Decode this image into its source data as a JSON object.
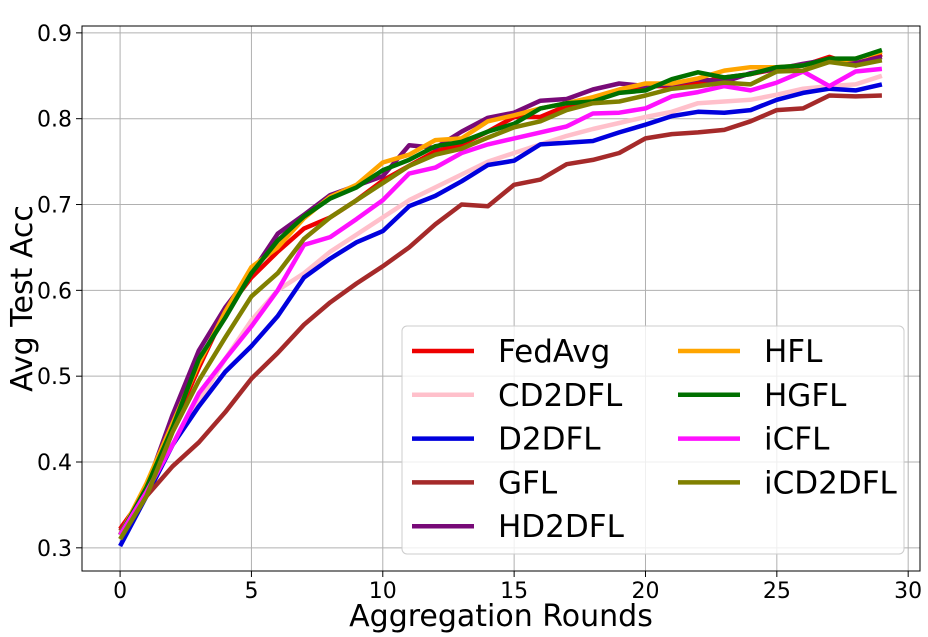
{
  "chart_data": {
    "type": "line",
    "title": "",
    "xlabel": "Aggregation Rounds",
    "ylabel": "Avg Test Acc",
    "xlim": [
      -1.45,
      30.45
    ],
    "ylim": [
      0.273,
      0.908
    ],
    "xticks": [
      0,
      5,
      10,
      15,
      20,
      25,
      30
    ],
    "xtick_labels": [
      "0",
      "5",
      "10",
      "15",
      "20",
      "25",
      "30"
    ],
    "yticks": [
      0.3,
      0.4,
      0.5,
      0.6,
      0.7,
      0.8,
      0.9
    ],
    "ytick_labels": [
      "0.3",
      "0.4",
      "0.5",
      "0.6",
      "0.7",
      "0.8",
      "0.9"
    ],
    "grid": true,
    "legend_position": "lower-right",
    "legend_columns": 2,
    "x": [
      0,
      1,
      2,
      3,
      4,
      5,
      6,
      7,
      8,
      9,
      10,
      11,
      12,
      13,
      14,
      15,
      16,
      17,
      18,
      19,
      20,
      21,
      22,
      23,
      24,
      25,
      26,
      27,
      28,
      29
    ],
    "series": [
      {
        "name": "FedAvg",
        "color": "#ee0000",
        "values": [
          0.322,
          0.365,
          0.44,
          0.51,
          0.575,
          0.615,
          0.645,
          0.672,
          0.685,
          0.705,
          0.728,
          0.745,
          0.762,
          0.77,
          0.785,
          0.802,
          0.802,
          0.815,
          0.822,
          0.832,
          0.838,
          0.838,
          0.842,
          0.848,
          0.852,
          0.858,
          0.862,
          0.872,
          0.862,
          0.875
        ]
      },
      {
        "name": "CD2DFL",
        "color": "#ffc0cb",
        "values": [
          0.318,
          0.36,
          0.42,
          0.47,
          0.52,
          0.565,
          0.6,
          0.62,
          0.645,
          0.665,
          0.685,
          0.705,
          0.72,
          0.735,
          0.75,
          0.76,
          0.77,
          0.78,
          0.788,
          0.795,
          0.802,
          0.808,
          0.818,
          0.82,
          0.822,
          0.828,
          0.835,
          0.838,
          0.84,
          0.85
        ]
      },
      {
        "name": "D2DFL",
        "color": "#0000dd",
        "values": [
          0.302,
          0.36,
          0.42,
          0.465,
          0.505,
          0.535,
          0.57,
          0.615,
          0.637,
          0.656,
          0.669,
          0.698,
          0.71,
          0.727,
          0.746,
          0.751,
          0.77,
          0.772,
          0.774,
          0.784,
          0.793,
          0.803,
          0.808,
          0.807,
          0.81,
          0.822,
          0.83,
          0.835,
          0.833,
          0.84
        ]
      },
      {
        "name": "GFL",
        "color": "#a52a2a",
        "values": [
          0.32,
          0.36,
          0.395,
          0.423,
          0.458,
          0.497,
          0.527,
          0.56,
          0.586,
          0.608,
          0.628,
          0.65,
          0.677,
          0.7,
          0.698,
          0.723,
          0.729,
          0.747,
          0.752,
          0.76,
          0.777,
          0.782,
          0.784,
          0.787,
          0.797,
          0.81,
          0.812,
          0.827,
          0.826,
          0.827
        ]
      },
      {
        "name": "HD2DFL",
        "color": "#780a78",
        "values": [
          0.315,
          0.37,
          0.455,
          0.53,
          0.58,
          0.62,
          0.666,
          0.688,
          0.711,
          0.722,
          0.733,
          0.769,
          0.766,
          0.785,
          0.801,
          0.807,
          0.821,
          0.823,
          0.834,
          0.841,
          0.838,
          0.84,
          0.846,
          0.843,
          0.853,
          0.858,
          0.864,
          0.869,
          0.865,
          0.872
        ]
      },
      {
        "name": "HFL",
        "color": "#ffa500",
        "values": [
          0.315,
          0.375,
          0.445,
          0.515,
          0.575,
          0.627,
          0.65,
          0.684,
          0.709,
          0.723,
          0.749,
          0.758,
          0.775,
          0.777,
          0.797,
          0.804,
          0.812,
          0.818,
          0.825,
          0.834,
          0.841,
          0.841,
          0.847,
          0.856,
          0.86,
          0.86,
          0.862,
          0.866,
          0.87,
          0.878
        ]
      },
      {
        "name": "HGFL",
        "color": "#007000",
        "values": [
          0.315,
          0.37,
          0.44,
          0.52,
          0.568,
          0.62,
          0.658,
          0.686,
          0.707,
          0.72,
          0.74,
          0.752,
          0.768,
          0.773,
          0.785,
          0.794,
          0.812,
          0.818,
          0.82,
          0.83,
          0.833,
          0.846,
          0.854,
          0.848,
          0.852,
          0.86,
          0.862,
          0.87,
          0.87,
          0.88
        ]
      },
      {
        "name": "iCFL",
        "color": "#ff11ff",
        "values": [
          0.315,
          0.365,
          0.42,
          0.48,
          0.52,
          0.558,
          0.6,
          0.653,
          0.662,
          0.683,
          0.705,
          0.736,
          0.743,
          0.76,
          0.77,
          0.777,
          0.784,
          0.791,
          0.806,
          0.807,
          0.812,
          0.826,
          0.831,
          0.838,
          0.833,
          0.842,
          0.855,
          0.838,
          0.855,
          0.858
        ]
      },
      {
        "name": "iCD2DFL",
        "color": "#808000",
        "values": [
          0.31,
          0.36,
          0.435,
          0.495,
          0.545,
          0.593,
          0.62,
          0.66,
          0.685,
          0.705,
          0.725,
          0.745,
          0.758,
          0.765,
          0.778,
          0.79,
          0.797,
          0.81,
          0.818,
          0.82,
          0.827,
          0.835,
          0.838,
          0.842,
          0.84,
          0.855,
          0.856,
          0.866,
          0.862,
          0.868
        ]
      }
    ]
  }
}
